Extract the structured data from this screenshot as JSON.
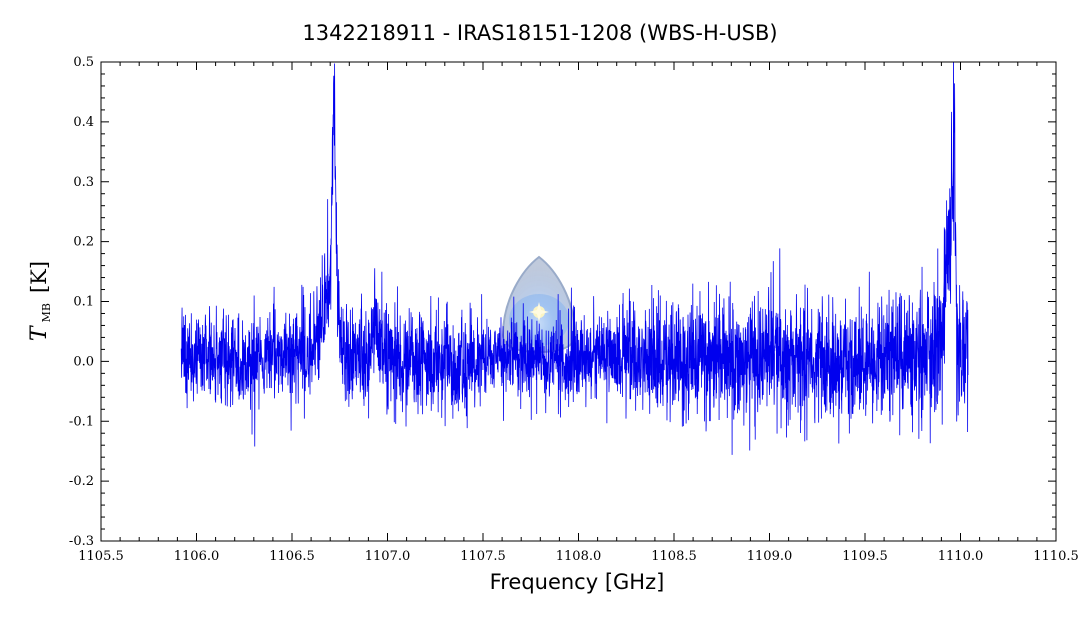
{
  "chart_data": {
    "type": "line",
    "title": "1342218911 - IRAS18151-1208 (WBS-H-USB)",
    "xlabel": "Frequency [GHz]",
    "ylabel": {
      "main": "T",
      "subscript": "MB",
      "unit": "[K]"
    },
    "xlim": [
      1105.5,
      1110.5
    ],
    "ylim": [
      -0.3,
      0.5
    ],
    "xticks": [
      1105.5,
      1106.0,
      1106.5,
      1107.0,
      1107.5,
      1108.0,
      1108.5,
      1109.0,
      1109.5,
      1110.0,
      1110.5
    ],
    "xtick_labels": [
      "1105.5",
      "1106.0",
      "1106.5",
      "1107.0",
      "1107.5",
      "1108.0",
      "1108.5",
      "1109.0",
      "1109.5",
      "1110.0",
      "1110.5"
    ],
    "yticks": [
      -0.3,
      -0.2,
      -0.1,
      0.0,
      0.1,
      0.2,
      0.3,
      0.4,
      0.5
    ],
    "ytick_labels": [
      "-0.3",
      "-0.2",
      "-0.1",
      "0.0",
      "0.1",
      "0.2",
      "0.3",
      "0.4",
      "0.5"
    ],
    "grid": false,
    "series_color": "#0000ee",
    "series": [
      {
        "x": [
          1105.92,
          1106.0,
          1106.1,
          1106.2,
          1106.3,
          1106.4,
          1106.5,
          1106.6,
          1106.65,
          1106.68,
          1106.7,
          1106.71,
          1106.72,
          1106.73,
          1106.74,
          1106.75,
          1106.8,
          1106.9,
          1106.93,
          1107.0,
          1107.2,
          1107.4,
          1107.6,
          1107.8,
          1108.0,
          1108.2,
          1108.4,
          1108.6,
          1108.8,
          1109.0,
          1109.2,
          1109.4,
          1109.6,
          1109.8,
          1109.9,
          1109.97,
          1109.98,
          1110.0,
          1110.04
        ],
        "y": [
          0.02,
          0.0,
          0.01,
          -0.01,
          0.0,
          0.01,
          0.0,
          0.02,
          0.05,
          0.09,
          0.14,
          0.3,
          0.47,
          0.25,
          0.1,
          0.05,
          0.01,
          0.0,
          0.08,
          0.0,
          0.0,
          -0.01,
          0.01,
          0.0,
          0.0,
          0.01,
          0.0,
          0.0,
          0.0,
          0.01,
          0.0,
          0.0,
          0.0,
          0.01,
          0.02,
          0.34,
          0.05,
          0.0,
          0.0
        ],
        "noise_sigma_k": 0.045,
        "channel_spacing_ghz": 0.0011
      }
    ]
  },
  "watermark_icon": "herschel-logo-icon"
}
